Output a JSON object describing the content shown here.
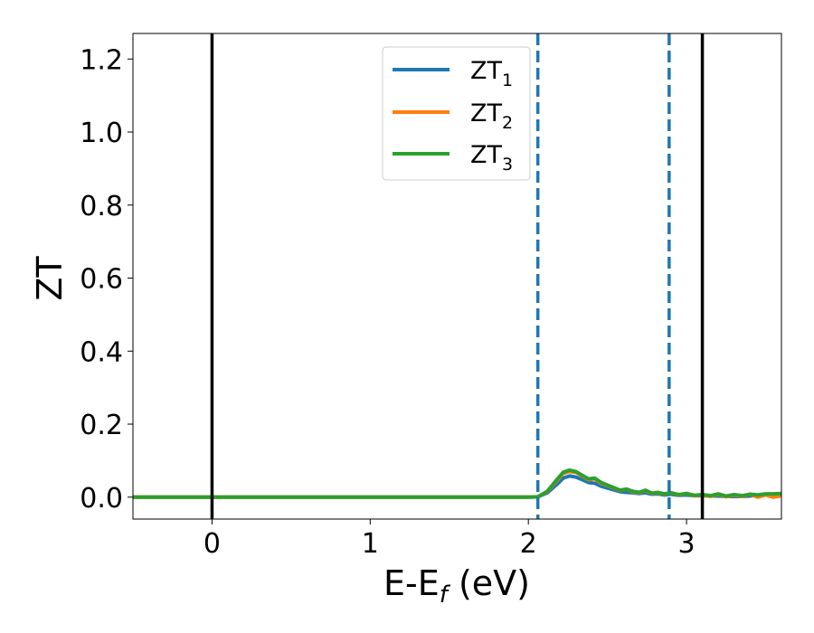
{
  "chart_data": {
    "type": "line",
    "title": "",
    "xlabel": "E-E",
    "xlabel_sub": "f",
    "xlabel_unit": " (eV)",
    "ylabel": "ZT",
    "xlim": [
      -0.5,
      3.6
    ],
    "ylim": [
      -0.06,
      1.27
    ],
    "xticks": [
      0,
      1,
      2,
      3
    ],
    "xtick_labels": [
      "0",
      "1",
      "2",
      "3"
    ],
    "yticks": [
      0.0,
      0.2,
      0.4,
      0.6,
      0.8,
      1.0,
      1.2
    ],
    "ytick_labels": [
      "0.0",
      "0.2",
      "0.4",
      "0.6",
      "0.8",
      "1.0",
      "1.2"
    ],
    "grid": false,
    "legend_position": "upper center",
    "vlines": [
      {
        "x": 0.0,
        "style": "solid",
        "color": "#000000"
      },
      {
        "x": 3.1,
        "style": "solid",
        "color": "#000000"
      },
      {
        "x": 2.06,
        "style": "dashed",
        "color": "#1f77b4"
      },
      {
        "x": 2.89,
        "style": "dashed",
        "color": "#1f77b4"
      }
    ],
    "series": [
      {
        "name": "ZT",
        "name_sub": "1",
        "color": "#1f77b4",
        "x": [
          -0.5,
          2.0,
          2.06,
          2.12,
          2.18,
          2.22,
          2.26,
          2.3,
          2.34,
          2.38,
          2.42,
          2.46,
          2.5,
          2.54,
          2.58,
          2.62,
          2.66,
          2.7,
          2.74,
          2.78,
          2.82,
          2.86,
          2.9,
          2.95,
          3.0,
          3.05,
          3.1,
          3.15,
          3.2,
          3.25,
          3.3,
          3.35,
          3.4,
          3.45,
          3.5,
          3.55,
          3.6
        ],
        "y": [
          0.0,
          0.0,
          0.001,
          0.012,
          0.035,
          0.052,
          0.058,
          0.055,
          0.048,
          0.04,
          0.038,
          0.03,
          0.025,
          0.02,
          0.015,
          0.013,
          0.012,
          0.01,
          0.012,
          0.008,
          0.009,
          0.006,
          0.008,
          0.005,
          0.006,
          0.004,
          0.004,
          0.003,
          0.003,
          0.002,
          0.002,
          0.002,
          0.003,
          0.006,
          0.007,
          0.006,
          0.008
        ]
      },
      {
        "name": "ZT",
        "name_sub": "2",
        "color": "#ff7f0e",
        "x": [
          -0.5,
          2.0,
          2.06,
          2.12,
          2.18,
          2.22,
          2.26,
          2.3,
          2.34,
          2.38,
          2.42,
          2.46,
          2.5,
          2.54,
          2.58,
          2.62,
          2.66,
          2.7,
          2.74,
          2.78,
          2.82,
          2.86,
          2.9,
          2.95,
          3.0,
          3.05,
          3.1,
          3.15,
          3.2,
          3.25,
          3.3,
          3.35,
          3.4,
          3.45,
          3.5,
          3.55,
          3.6
        ],
        "y": [
          0.0,
          0.0,
          0.001,
          0.015,
          0.045,
          0.065,
          0.07,
          0.068,
          0.058,
          0.048,
          0.05,
          0.038,
          0.032,
          0.025,
          0.018,
          0.022,
          0.015,
          0.012,
          0.018,
          0.01,
          0.012,
          0.008,
          0.012,
          0.006,
          0.01,
          0.004,
          0.006,
          0.002,
          0.008,
          0.001,
          0.006,
          0.002,
          0.008,
          0.0,
          0.006,
          0.0,
          0.004
        ]
      },
      {
        "name": "ZT",
        "name_sub": "3",
        "color": "#2ca02c",
        "x": [
          -0.5,
          2.0,
          2.06,
          2.12,
          2.18,
          2.22,
          2.26,
          2.3,
          2.34,
          2.38,
          2.42,
          2.46,
          2.5,
          2.54,
          2.58,
          2.62,
          2.66,
          2.7,
          2.74,
          2.78,
          2.82,
          2.86,
          2.9,
          2.95,
          3.0,
          3.05,
          3.1,
          3.15,
          3.2,
          3.25,
          3.3,
          3.35,
          3.4,
          3.45,
          3.5,
          3.55,
          3.6
        ],
        "y": [
          0.0,
          0.0,
          0.001,
          0.016,
          0.048,
          0.068,
          0.074,
          0.07,
          0.06,
          0.05,
          0.052,
          0.04,
          0.033,
          0.026,
          0.019,
          0.022,
          0.016,
          0.013,
          0.019,
          0.011,
          0.013,
          0.009,
          0.012,
          0.007,
          0.01,
          0.005,
          0.007,
          0.004,
          0.009,
          0.003,
          0.007,
          0.004,
          0.008,
          0.006,
          0.009,
          0.009,
          0.01
        ]
      }
    ]
  }
}
